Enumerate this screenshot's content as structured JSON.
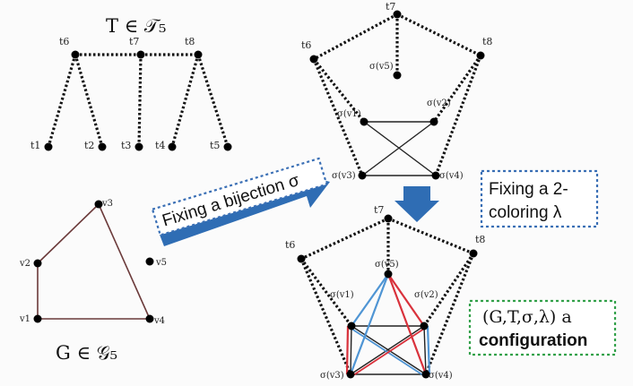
{
  "labels": {
    "tree_title": "T ∈ 𝒯₅",
    "graph_title": "G ∈ 𝒢₅",
    "bijection": "Fixing a bijection σ",
    "coloring_line1": "Fixing a 2-",
    "coloring_line2": "coloring λ",
    "config_line1": "(G,T,σ,λ) a",
    "config_line2": "configuration"
  },
  "tree": {
    "nodes": [
      "t6",
      "t7",
      "t8",
      "t1",
      "t2",
      "t3",
      "t4",
      "t5"
    ]
  },
  "graph": {
    "nodes": [
      "v1",
      "v2",
      "v3",
      "v4",
      "v5"
    ]
  },
  "mid_labels": {
    "t6": "t6",
    "t7": "t7",
    "t8": "t8",
    "sv1": "σ(v1)",
    "sv2": "σ(v2)",
    "sv3": "σ(v3)",
    "sv4": "σ(v4)",
    "sv5": "σ(v5)"
  },
  "bottom_labels": {
    "t6": "t6",
    "t7": "t7",
    "t8": "t8",
    "sv1": "σ(v1)",
    "sv2": "σ(v2)",
    "sv3": "σ(v3)",
    "sv4": "σ(v4)",
    "sv5": "σ(v5)"
  },
  "colors": {
    "arrow": "#2f6db4",
    "bijection_border": "#3a6fb5",
    "coloring_border": "#3a6fb5",
    "config_border": "#33a14a",
    "edge_red": "#d9323c",
    "edge_blue": "#4f95d4",
    "graph_edge": "#6b3a3a"
  }
}
